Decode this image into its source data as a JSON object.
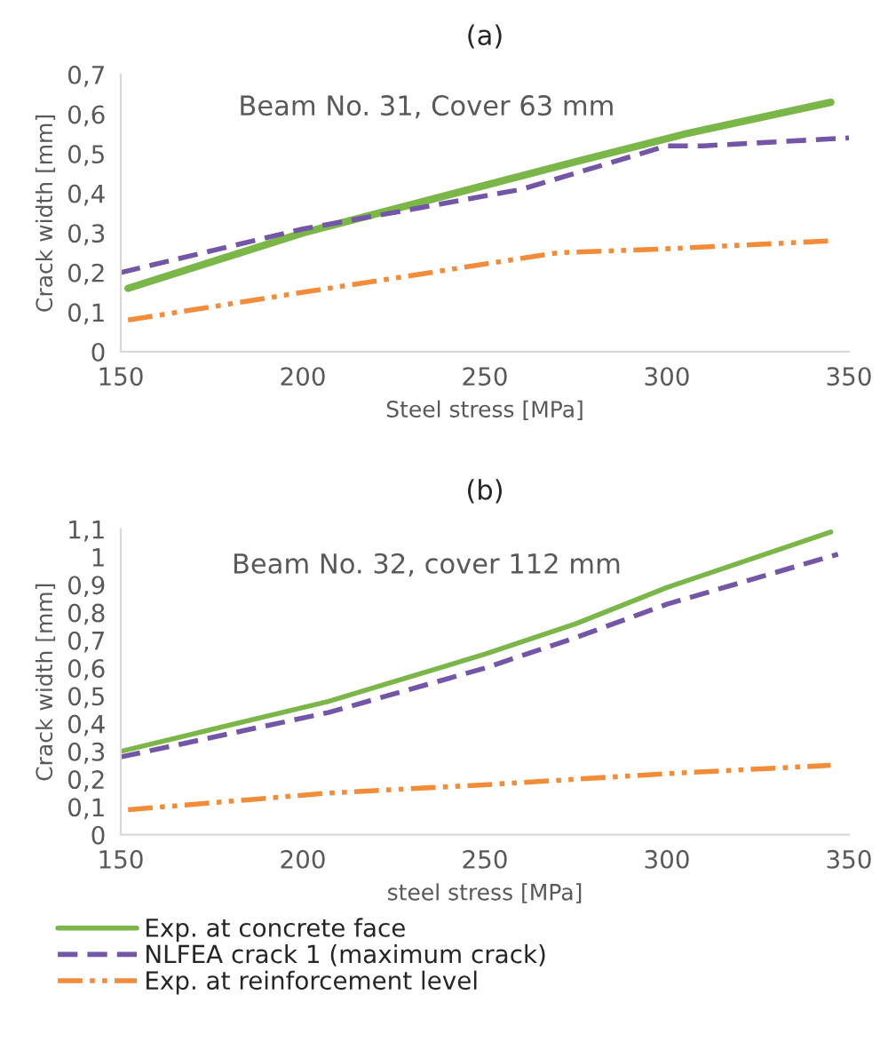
{
  "chart_data": [
    {
      "type": "line",
      "title": "(a)",
      "xlabel": "Steel stress [MPa]",
      "ylabel": "Crack width [mm]",
      "annotations": [
        "Beam No. 31, Cover 63 mm"
      ],
      "xlim": [
        150,
        350
      ],
      "xticks": [
        150,
        200,
        250,
        300,
        350
      ],
      "ylim": [
        0,
        0.7
      ],
      "yticks": [
        0,
        {
          "value": 0.1,
          "label": "0,1"
        },
        {
          "value": 0.2,
          "label": "0,2"
        },
        {
          "value": 0.3,
          "label": "0,3"
        },
        {
          "value": 0.4,
          "label": "0,4"
        },
        {
          "value": 0.5,
          "label": "0,5"
        },
        {
          "value": 0.6,
          "label": "0,6"
        },
        {
          "value": 0.7,
          "label": "0,7"
        }
      ],
      "grid": false,
      "legend": false,
      "series": [
        {
          "color": "#7ab648",
          "line_style": "solid",
          "x": [
            152,
            200,
            275,
            305,
            345
          ],
          "values": [
            0.16,
            0.3,
            0.48,
            0.55,
            0.63
          ]
        },
        {
          "color": "#7356a8",
          "line_style": "dashed",
          "x": [
            150,
            200,
            260,
            300,
            310,
            350
          ],
          "values": [
            0.2,
            0.31,
            0.41,
            0.52,
            0.52,
            0.54
          ]
        },
        {
          "color": "#f28c38",
          "line_style": "dashdot",
          "x": [
            152,
            200,
            270,
            300,
            345
          ],
          "values": [
            0.08,
            0.15,
            0.25,
            0.26,
            0.28
          ]
        }
      ]
    },
    {
      "type": "line",
      "title": "(b)",
      "xlabel": "steel stress [MPa]",
      "ylabel": "Crack width [mm]",
      "annotations": [
        "Beam No. 32, cover 112 mm"
      ],
      "xlim": [
        150,
        350
      ],
      "xticks": [
        150,
        200,
        250,
        300,
        350
      ],
      "ylim": [
        0,
        1.1
      ],
      "yticks": [
        0,
        {
          "value": 0.1,
          "label": "0,1"
        },
        {
          "value": 0.2,
          "label": "0,2"
        },
        {
          "value": 0.3,
          "label": "0,3"
        },
        {
          "value": 0.4,
          "label": "0,4"
        },
        {
          "value": 0.5,
          "label": "0,5"
        },
        {
          "value": 0.6,
          "label": "0,6"
        },
        {
          "value": 0.7,
          "label": "0,7"
        },
        {
          "value": 0.8,
          "label": "0,8"
        },
        {
          "value": 0.9,
          "label": "0,9"
        },
        1,
        {
          "value": 1.1,
          "label": "1,1"
        }
      ],
      "grid": false,
      "legend": "bottom",
      "series": [
        {
          "name": "Exp. at concrete face",
          "color": "#7ab648",
          "line_style": "solid",
          "x": [
            150,
            207,
            250,
            275,
            300,
            345
          ],
          "values": [
            0.3,
            0.48,
            0.65,
            0.76,
            0.89,
            1.09
          ]
        },
        {
          "name": "NLFEA crack 1 (maximum crack)",
          "color": "#7356a8",
          "line_style": "dashed",
          "x": [
            150,
            207,
            250,
            275,
            300,
            347
          ],
          "values": [
            0.28,
            0.44,
            0.6,
            0.71,
            0.83,
            1.01
          ]
        },
        {
          "name": "Exp. at reinforcement level",
          "color": "#f28c38",
          "line_style": "dashdot",
          "x": [
            152,
            207,
            250,
            275,
            300,
            345
          ],
          "values": [
            0.09,
            0.15,
            0.18,
            0.2,
            0.22,
            0.25
          ]
        }
      ]
    }
  ]
}
